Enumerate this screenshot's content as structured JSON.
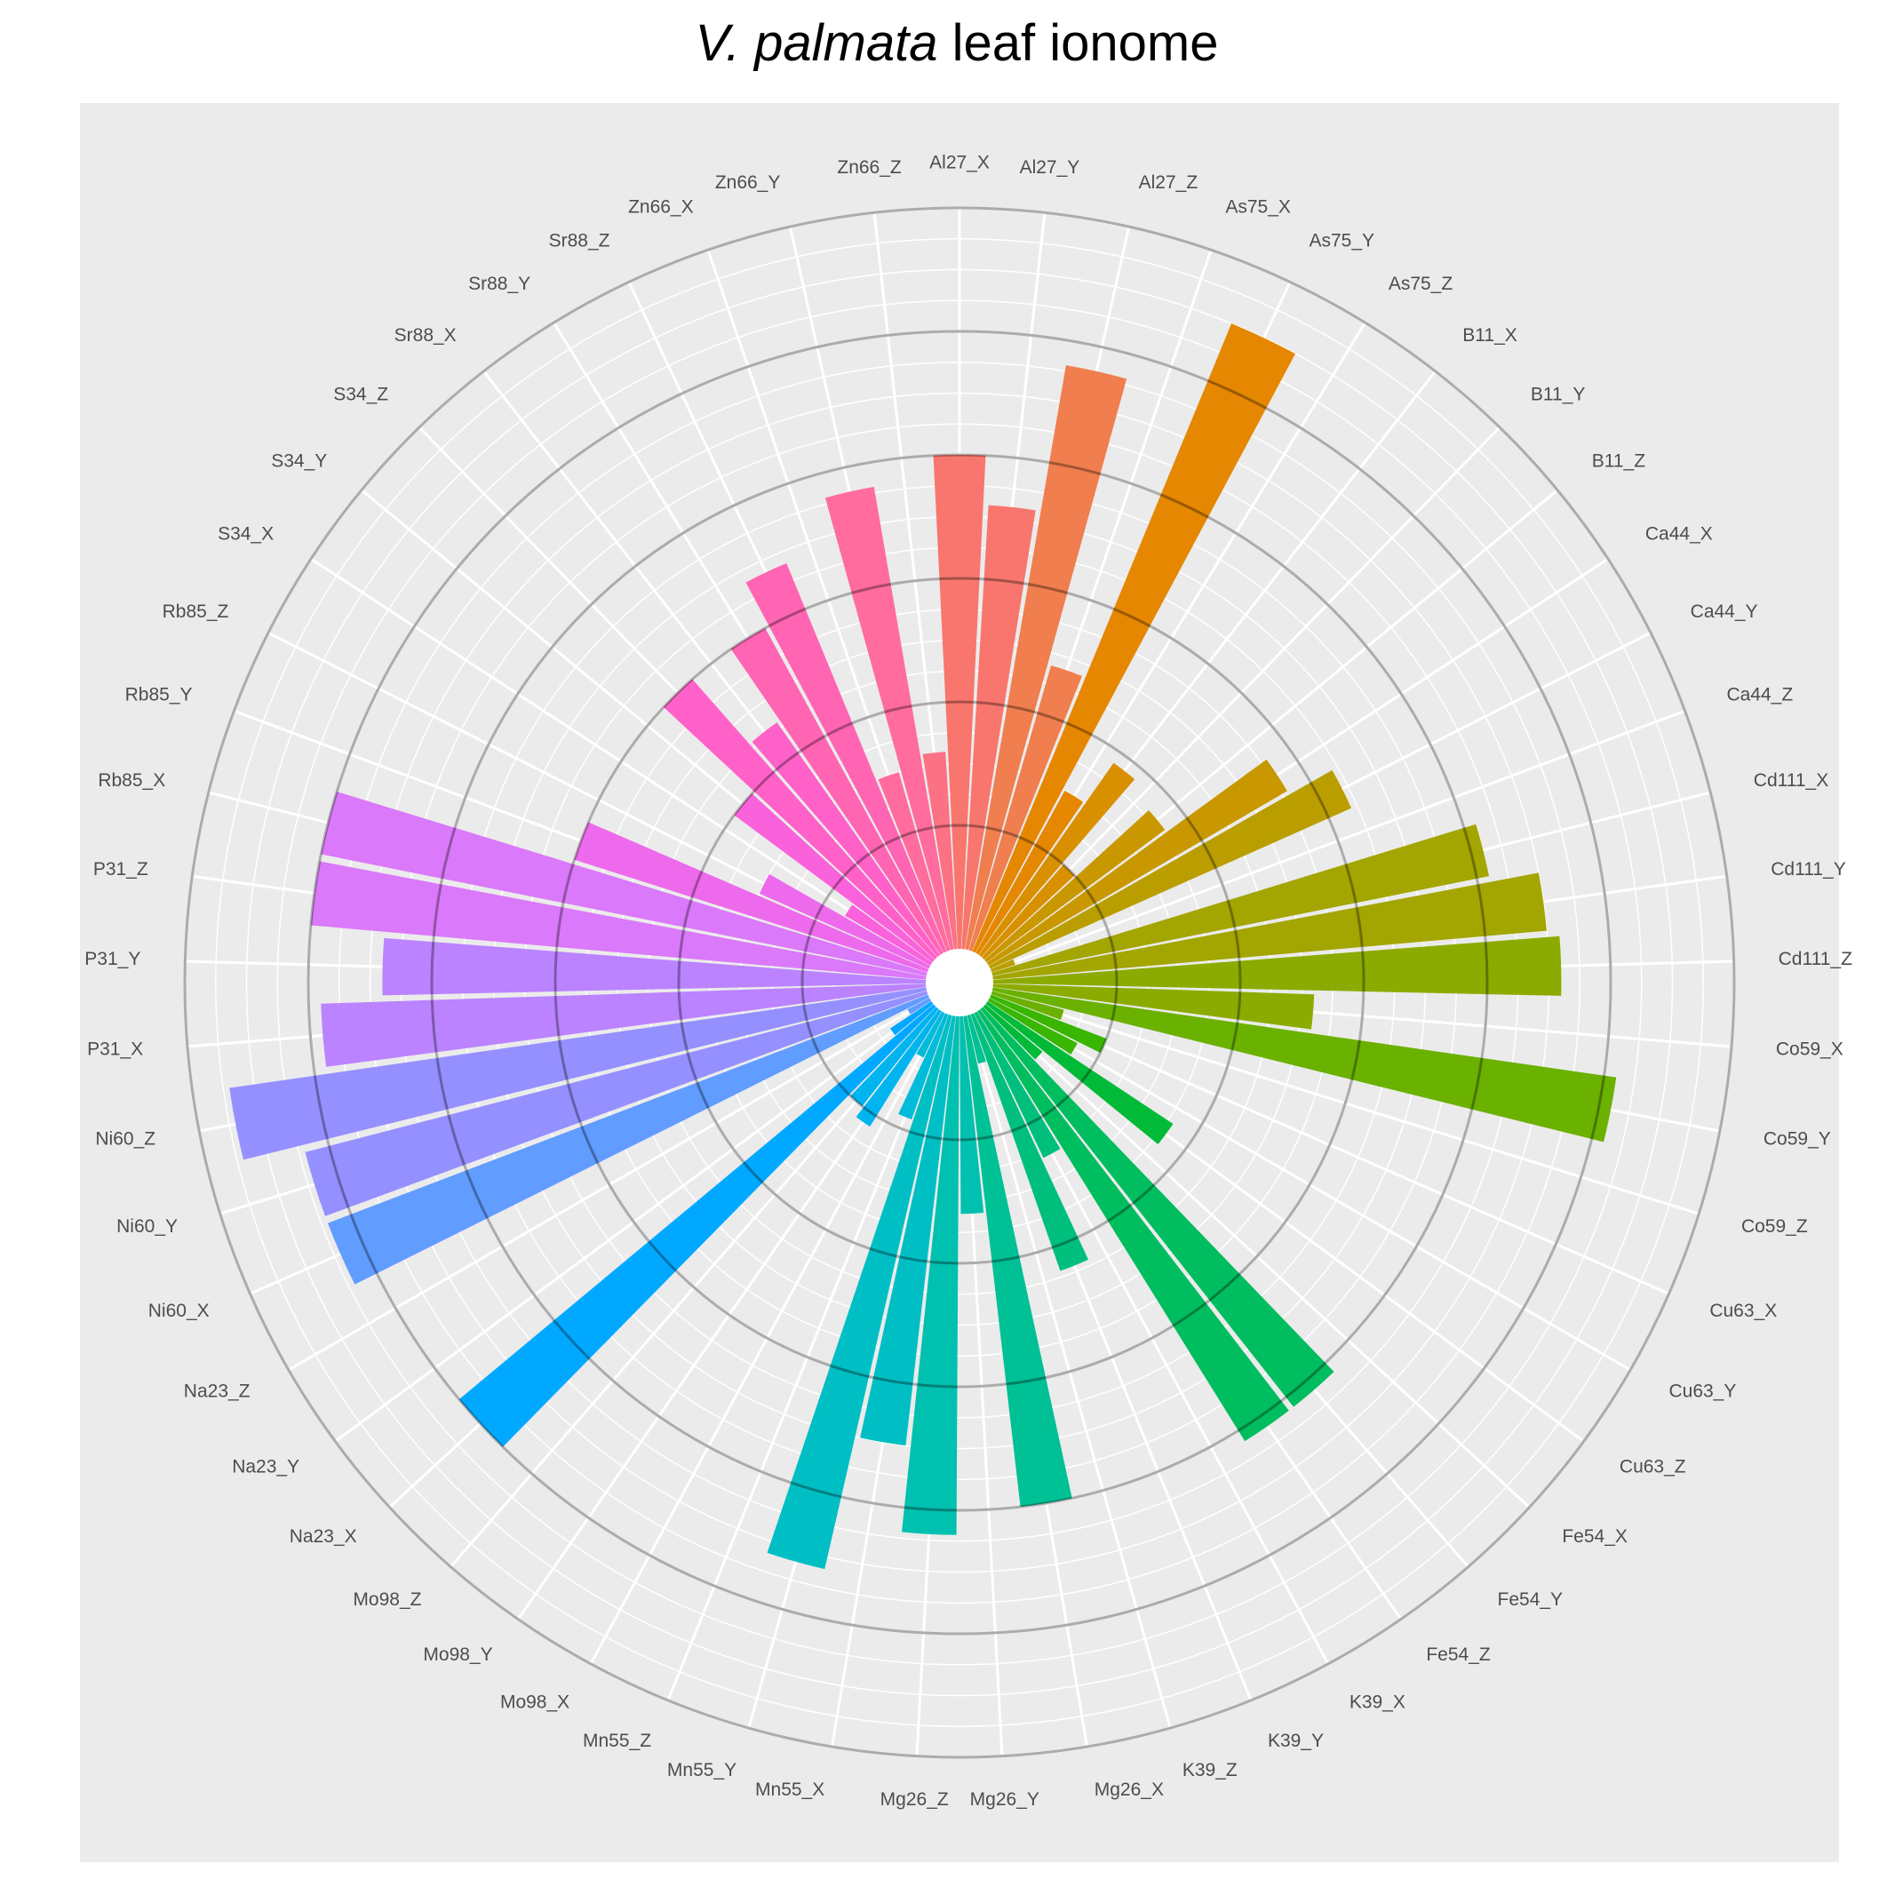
{
  "chart_data": {
    "type": "bar",
    "coordinate_system": "polar",
    "title": {
      "italic_part": "V. palmata",
      "regular_part": " leaf ionome"
    },
    "xlabel": "",
    "ylabel": "",
    "grid": true,
    "legend": "none",
    "ylim": [
      0,
      6
    ],
    "major_rings": [
      1,
      2,
      3,
      4,
      5,
      6
    ],
    "categories": [
      "Al27_X",
      "Al27_Y",
      "Al27_Z",
      "As75_X",
      "As75_Y",
      "As75_Z",
      "B11_X",
      "B11_Y",
      "B11_Z",
      "Ca44_X",
      "Ca44_Y",
      "Ca44_Z",
      "Cd111_X",
      "Cd111_Y",
      "Cd111_Z",
      "Co59_X",
      "Co59_Y",
      "Co59_Z",
      "Cu63_X",
      "Cu63_Y",
      "Cu63_Z",
      "Fe54_X",
      "Fe54_Y",
      "Fe54_Z",
      "K39_X",
      "K39_Y",
      "K39_Z",
      "Mg26_X",
      "Mg26_Y",
      "Mg26_Z",
      "Mn55_X",
      "Mn55_Y",
      "Mn55_Z",
      "Mo98_X",
      "Mo98_Y",
      "Mo98_Z",
      "Na23_X",
      "Na23_Y",
      "Na23_Z",
      "Ni60_X",
      "Ni60_Y",
      "Ni60_Z",
      "P31_X",
      "P31_Y",
      "P31_Z",
      "Rb85_X",
      "Rb85_Y",
      "Rb85_Z",
      "S34_X",
      "S34_Y",
      "S34_Z",
      "Sr88_X",
      "Sr88_Y",
      "Sr88_Z",
      "Zn66_X",
      "Zn66_Y",
      "Zn66_Z"
    ],
    "values": [
      4.0,
      3.6,
      4.8,
      2.4,
      5.5,
      1.5,
      1.9,
      1.0,
      1.8,
      2.8,
      3.2,
      0.2,
      4.1,
      4.5,
      4.6,
      2.6,
      5.1,
      0.6,
      1.0,
      0.8,
      1.8,
      0.6,
      4.1,
      4.1,
      1.3,
      2.2,
      0.4,
      4.0,
      1.6,
      4.2,
      3.5,
      4.6,
      0.9,
      0.4,
      1.1,
      1.0,
      5.0,
      0.4,
      0.2,
      5.2,
      5.2,
      5.7,
      4.9,
      4.4,
      5.0,
      5.0,
      3.0,
      1.5,
      0.8,
      2.0,
      3.0,
      2.3,
      3.0,
      3.4,
      1.5,
      3.8,
      1.6
    ],
    "colors": [
      "#F8766D",
      "#F07E4E",
      "#E58700",
      "#D89000",
      "#C99800",
      "#BA9E00",
      "#A3A500",
      "#8CAB00",
      "#6BB100",
      "#39B600",
      "#00BA38",
      "#00BD5F",
      "#00BF7D",
      "#00C096",
      "#00C0AF",
      "#00BFC4",
      "#00BBDA",
      "#00B4EF",
      "#00A9FF",
      "#619CFF",
      "#9590FF",
      "#BB83FF",
      "#DA79F9",
      "#EE6AEC",
      "#FA62DB",
      "#FF61C9",
      "#FF65B3",
      "#FF6C9D",
      "#FC7184"
    ]
  }
}
